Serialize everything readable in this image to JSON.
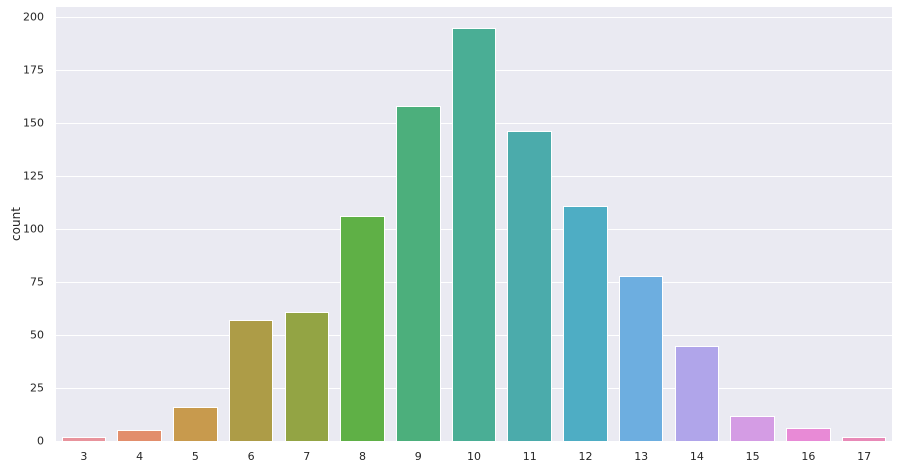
{
  "chart_data": {
    "type": "bar",
    "title": "",
    "xlabel": "",
    "ylabel": "count",
    "categories": [
      "3",
      "4",
      "5",
      "6",
      "7",
      "8",
      "9",
      "10",
      "11",
      "12",
      "13",
      "14",
      "15",
      "16",
      "17"
    ],
    "values": [
      2,
      5,
      16,
      57,
      61,
      106,
      158,
      195,
      146,
      111,
      78,
      45,
      12,
      6,
      2
    ],
    "colors": [
      "#e8939c",
      "#e28e6c",
      "#c89a4d",
      "#ad9c47",
      "#93a444",
      "#5fb046",
      "#4caf7c",
      "#4aae95",
      "#4babab",
      "#4eadc4",
      "#6daee0",
      "#b0a5ea",
      "#d49ce4",
      "#e88ad6",
      "#e889b7"
    ],
    "ylim": [
      0,
      205
    ],
    "yticks": [
      0,
      25,
      50,
      75,
      100,
      125,
      150,
      175,
      200
    ],
    "grid": true,
    "legend": null
  }
}
